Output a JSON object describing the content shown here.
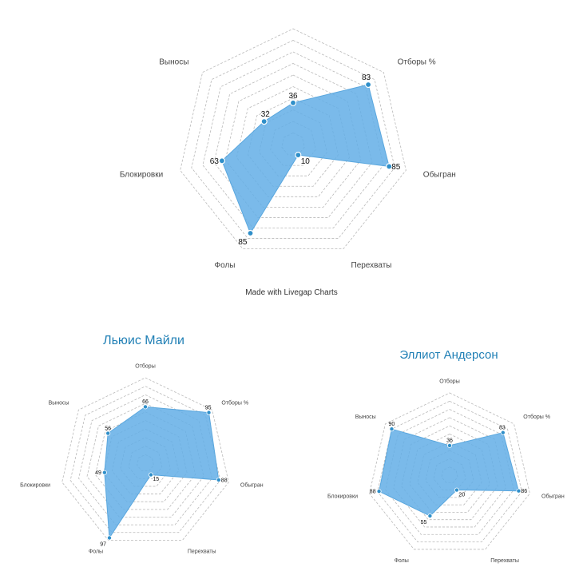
{
  "caption": "Made with Livegap Charts",
  "colors": {
    "fill": "#63aee6",
    "point": "#2f8fc9",
    "title": "#1f7fb5",
    "grid": "#b9b9b9"
  },
  "chart_data": [
    {
      "type": "radar",
      "title": "",
      "categories": [
        "",
        "Отборы %",
        "Обыгран",
        "Перехваты",
        "Фолы",
        "Блокировки",
        "Выносы"
      ],
      "series": [
        {
          "values": [
            36,
            83,
            85,
            10,
            85,
            63,
            32
          ]
        }
      ],
      "rlim": [
        0,
        100
      ],
      "grid": true
    },
    {
      "type": "radar",
      "title": "Льюис Майли",
      "categories": [
        "Отборы",
        "Отборы %",
        "Обыгран",
        "Перехваты",
        "Фолы",
        "Блокировки",
        "Выносы"
      ],
      "series": [
        {
          "values": [
            66,
            95,
            88,
            15,
            97,
            49,
            56
          ]
        }
      ],
      "rlim": [
        0,
        100
      ],
      "grid": true
    },
    {
      "type": "radar",
      "title": "Эллиот Андерсон",
      "categories": [
        "Отборы",
        "Отборы %",
        "Обыгран",
        "Перехваты",
        "Фолы",
        "Блокировки",
        "Выносы"
      ],
      "series": [
        {
          "values": [
            36,
            83,
            86,
            20,
            55,
            88,
            90
          ]
        }
      ],
      "rlim": [
        0,
        100
      ],
      "grid": true
    }
  ]
}
